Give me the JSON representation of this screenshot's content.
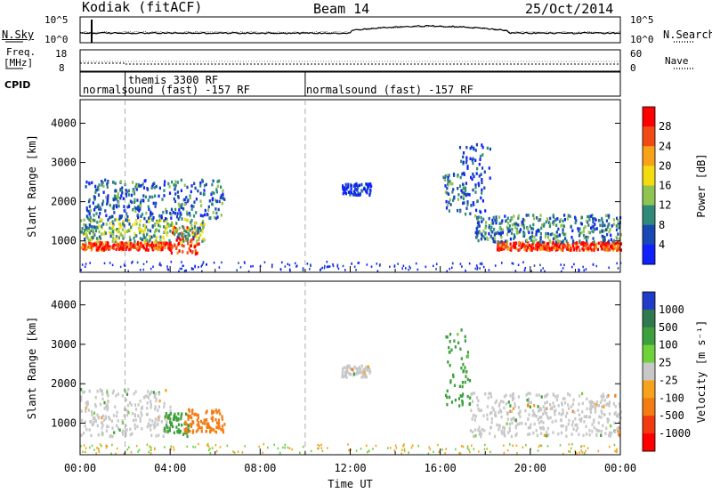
{
  "header": {
    "radar": "Kodiak (fitACF)",
    "beam": "Beam 14",
    "date": "25/Oct/2014"
  },
  "top_panel": {
    "left_label": "N.Sky",
    "right_label": "N.Search",
    "left_ticks": [
      "10^5",
      "10^0"
    ],
    "right_ticks": [
      "10^5",
      "10^0"
    ]
  },
  "freq_panel": {
    "left_label_1": "Freq.",
    "left_label_2": "[MHz]",
    "right_label": "Nave",
    "left_ticks": [
      "18",
      "8"
    ],
    "right_ticks": [
      "60",
      "0"
    ]
  },
  "cpid_panel": {
    "label": "CPID",
    "modes": [
      "themis 3300 RF",
      "normalsound (fast) -157 RF",
      "normalsound (fast) -157 RF"
    ]
  },
  "chart_data": [
    {
      "type": "heatmap",
      "parameter": "Power",
      "ylabel": "Slant Range [km]",
      "ylim": [
        200,
        4600
      ],
      "y_ticks": [
        1000,
        2000,
        3000,
        4000
      ],
      "colorbar_label": "Power [dB]",
      "colorbar_ticks": [
        4,
        8,
        12,
        16,
        20,
        24,
        28
      ],
      "colorbar_colors": [
        "#1020ff",
        "#1848b4",
        "#2f8a7a",
        "#8fc450",
        "#f4dc10",
        "#f9a118",
        "#f24a14",
        "#ff0000"
      ],
      "dashed_times_hours": [
        2,
        10
      ],
      "echo_regions": [
        {
          "t_start": 0.0,
          "t_end": 4.0,
          "range_lo": 800,
          "range_hi": 1000,
          "value": 28
        },
        {
          "t_start": 4.0,
          "t_end": 5.3,
          "range_lo": 700,
          "range_hi": 1400,
          "value": 26
        },
        {
          "t_start": 0.0,
          "t_end": 5.5,
          "range_lo": 1000,
          "range_hi": 1600,
          "value": 14
        },
        {
          "t_start": 0.2,
          "t_end": 6.4,
          "range_lo": 1600,
          "range_hi": 2600,
          "value": 9
        },
        {
          "t_start": 11.6,
          "t_end": 12.9,
          "range_lo": 2200,
          "range_hi": 2500,
          "value": 5
        },
        {
          "t_start": 16.1,
          "t_end": 17.2,
          "range_lo": 1800,
          "range_hi": 2800,
          "value": 10
        },
        {
          "t_start": 16.8,
          "t_end": 18.2,
          "range_lo": 1700,
          "range_hi": 3500,
          "value": 6
        },
        {
          "t_start": 18.5,
          "t_end": 24.0,
          "range_lo": 800,
          "range_hi": 1000,
          "value": 28
        },
        {
          "t_start": 17.5,
          "t_end": 24.0,
          "range_lo": 1000,
          "range_hi": 1700,
          "value": 10
        }
      ]
    },
    {
      "type": "heatmap",
      "parameter": "Velocity",
      "xlabel": "Time UT",
      "ylabel": "Slant Range [km]",
      "ylim": [
        200,
        4600
      ],
      "y_ticks": [
        1000,
        2000,
        3000,
        4000
      ],
      "x_tick_labels": [
        "00:00",
        "04:00",
        "08:00",
        "12:00",
        "16:00",
        "20:00",
        "00:00"
      ],
      "x_ticks_hours": [
        0,
        4,
        8,
        12,
        16,
        20,
        24
      ],
      "colorbar_label": "Velocity [m s⁻¹]",
      "colorbar_ticks": [
        1000,
        500,
        100,
        25,
        -25,
        -100,
        -500,
        -1000
      ],
      "colorbar_colors": [
        "#1f3cc8",
        "#2f7a4e",
        "#3ca03c",
        "#6fd23a",
        "#c8c8c8",
        "#f6a21c",
        "#f47c14",
        "#f23a10",
        "#ff0000"
      ],
      "dashed_times_hours": [
        2,
        10
      ],
      "echo_regions": [
        {
          "t_start": 0.0,
          "t_end": 4.0,
          "range_lo": 700,
          "range_hi": 1900,
          "value": 0
        },
        {
          "t_start": 3.7,
          "t_end": 4.8,
          "range_lo": 700,
          "range_hi": 1300,
          "value": 300
        },
        {
          "t_start": 4.6,
          "t_end": 6.4,
          "range_lo": 800,
          "range_hi": 1400,
          "value": -200
        },
        {
          "t_start": 11.6,
          "t_end": 12.9,
          "range_lo": 2200,
          "range_hi": 2500,
          "value": 0
        },
        {
          "t_start": 16.2,
          "t_end": 17.3,
          "range_lo": 1400,
          "range_hi": 3500,
          "value": 150
        },
        {
          "t_start": 17.3,
          "t_end": 24.0,
          "range_lo": 700,
          "range_hi": 1800,
          "value": 0
        }
      ]
    }
  ]
}
